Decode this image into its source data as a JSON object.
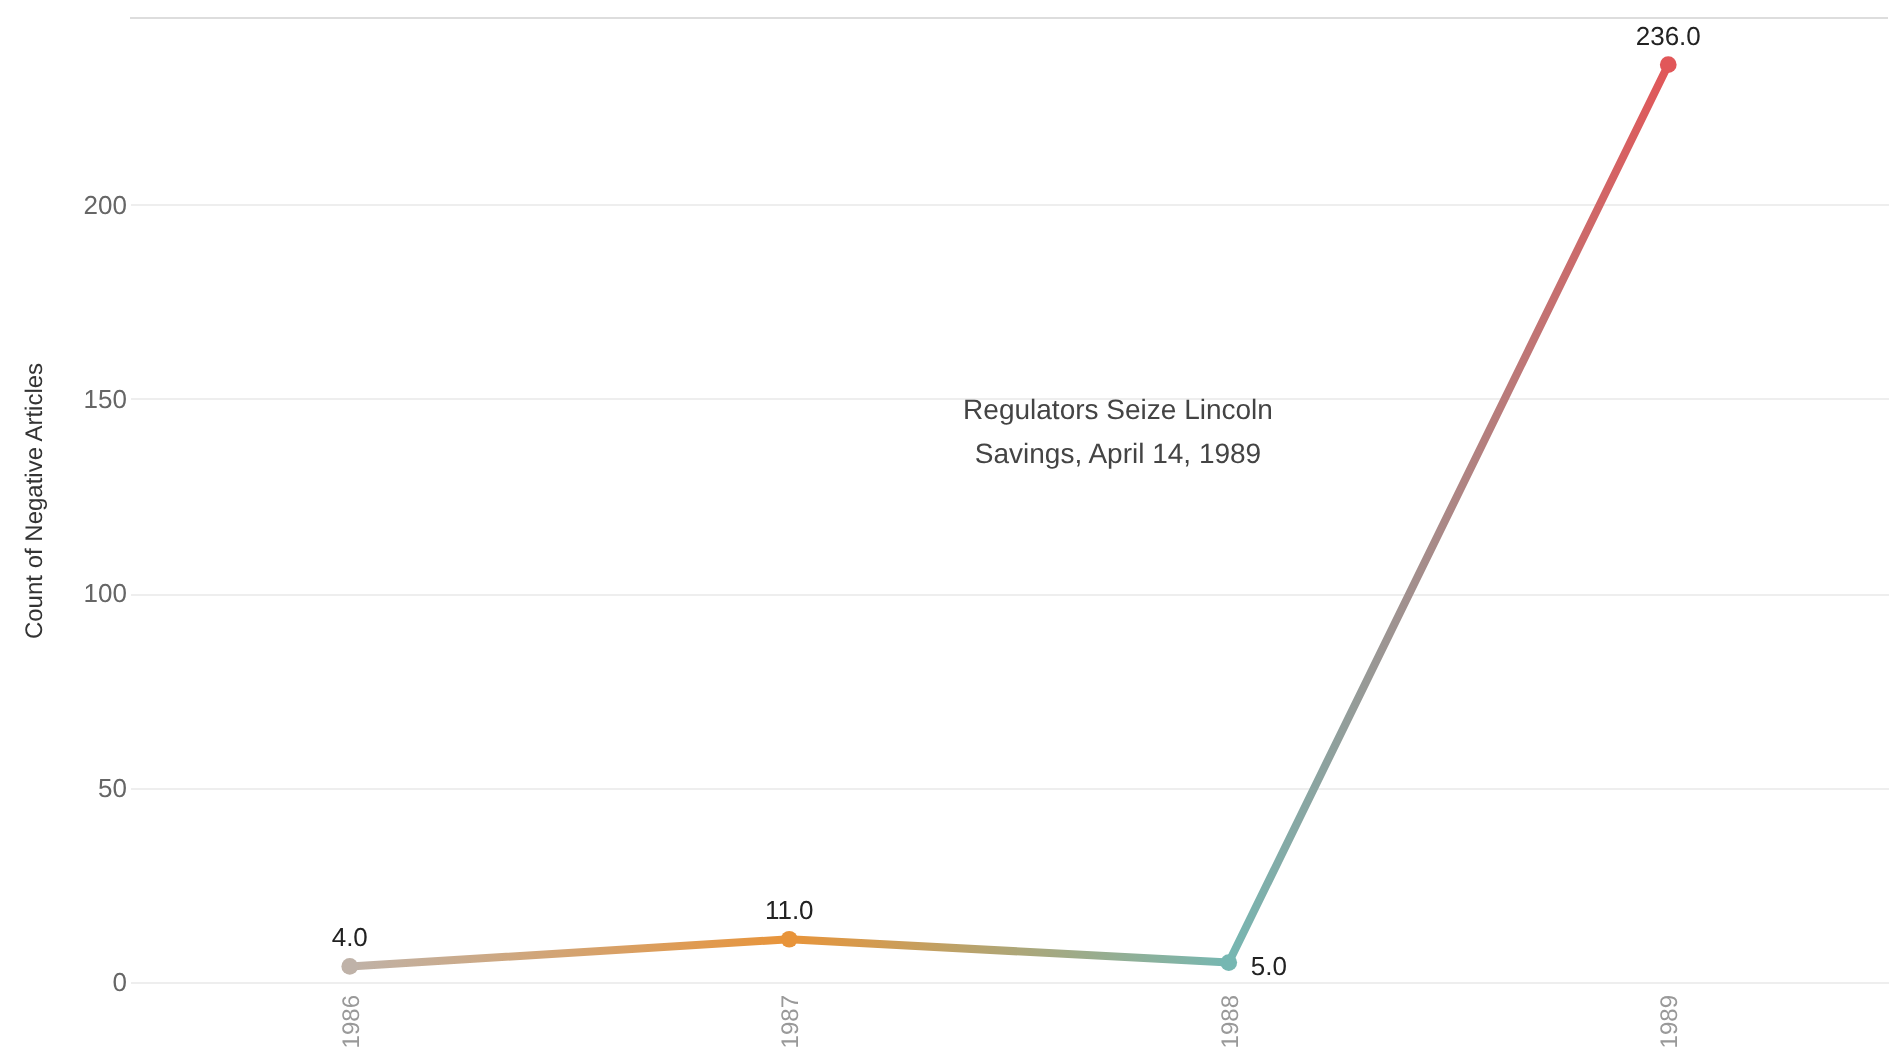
{
  "chart_data": {
    "type": "line",
    "ylabel": "Count of Negative Articles",
    "categories": [
      "1986",
      "1987",
      "1988",
      "1989"
    ],
    "values": [
      4,
      11,
      5,
      236
    ],
    "colors": [
      "#bfb2a8",
      "#e8943a",
      "#76b7b2",
      "#e15759"
    ],
    "value_labels": [
      "4.0",
      "11.0",
      "5.0",
      "236.0"
    ],
    "ylim": [
      0,
      248
    ],
    "yticks": [
      0,
      50,
      100,
      150,
      200
    ],
    "grid": "y",
    "marker": "circle",
    "annotations": [
      "Regulators Seize Lincoln Savings, April 14, 1989"
    ]
  }
}
